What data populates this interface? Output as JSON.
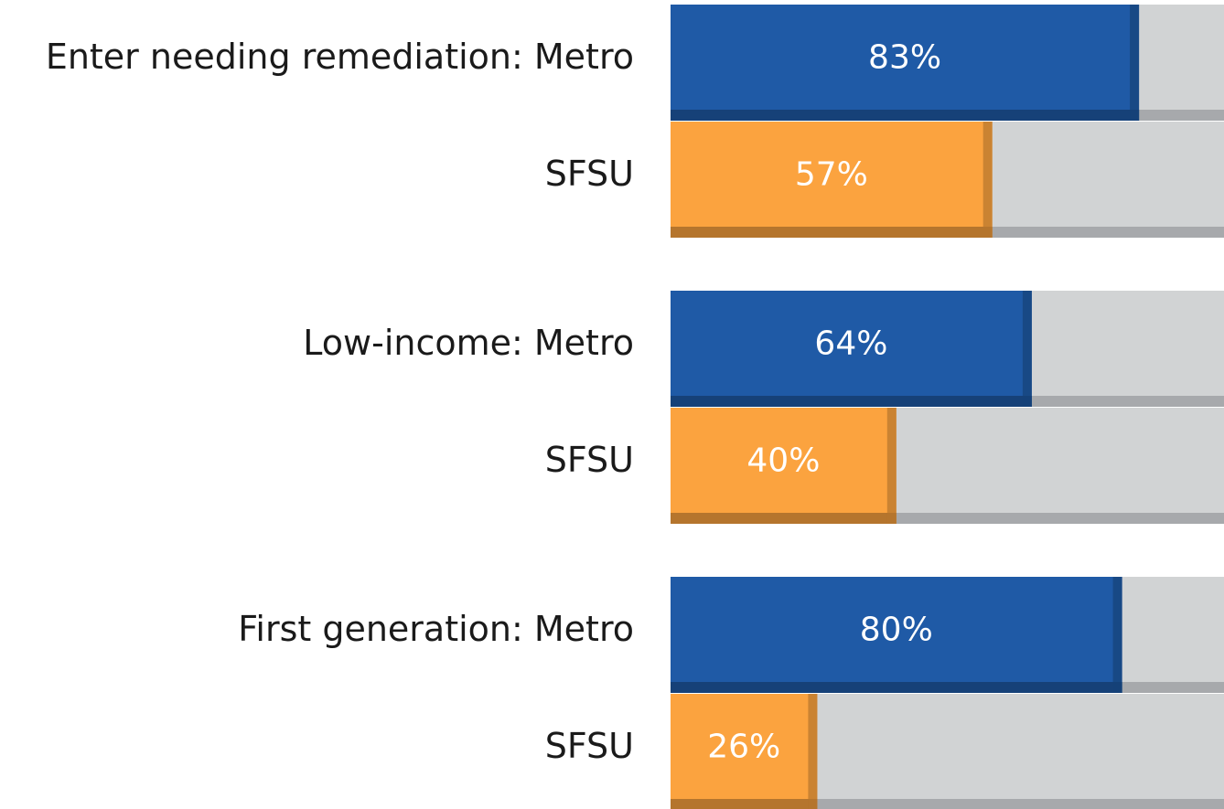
{
  "chart_data": {
    "type": "hbar",
    "categories": [
      "Enter needing remediation: Metro",
      "SFSU",
      "Low-income: Metro",
      "SFSU",
      "First generation: Metro",
      "SFSU"
    ],
    "values": [
      83,
      57,
      64,
      40,
      80,
      26
    ],
    "value_labels": [
      "83%",
      "57%",
      "64%",
      "40%",
      "80%",
      "26%"
    ],
    "colors": [
      "#1f5aa6",
      "#fba33f",
      "#1f5aa6",
      "#fba33f",
      "#1f5aa6",
      "#fba33f"
    ],
    "xlim": [
      0,
      100
    ]
  }
}
